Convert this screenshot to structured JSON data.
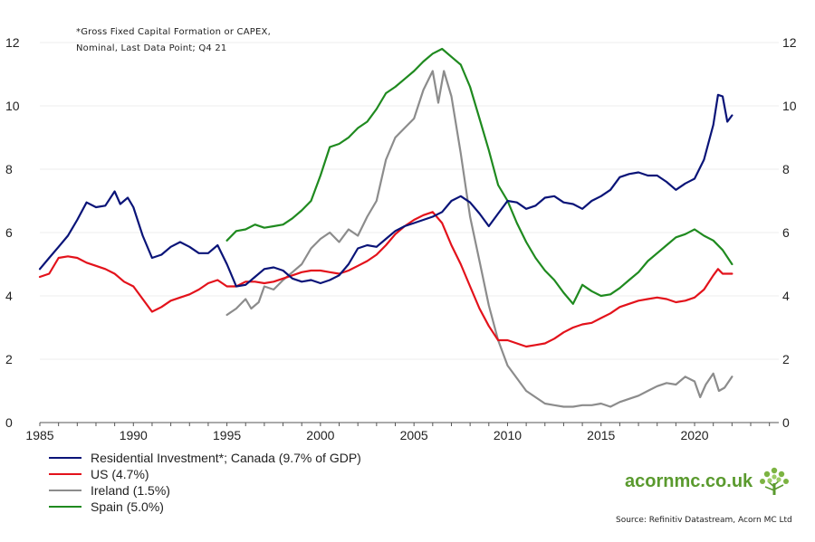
{
  "note": {
    "line1": "*Gross Fixed Capital Formation or CAPEX,",
    "line2": "Nominal, Last Data Point; Q4 21"
  },
  "legend": [
    {
      "label": "Residential Investment*; Canada (9.7% of GDP)",
      "color": "#0a1478"
    },
    {
      "label": "US (4.7%)",
      "color": "#e3121b"
    },
    {
      "label": "Ireland (1.5%)",
      "color": "#8c8c8c"
    },
    {
      "label": "Spain (5.0%)",
      "color": "#1f8a1f"
    }
  ],
  "brand": {
    "text": "acornmc.co.uk",
    "logo_icon": "tree-icon",
    "color": "#5a9a2e"
  },
  "source": "Source: Refinitiv Datastream, Acorn MC Ltd",
  "chart_data": {
    "type": "line",
    "title": "",
    "xlabel": "",
    "ylabel": "",
    "xlim": [
      1985,
      2024.5
    ],
    "ylim": [
      0,
      12
    ],
    "x_ticks": [
      1985,
      1990,
      1995,
      2000,
      2005,
      2010,
      2015,
      2020
    ],
    "y_ticks_left": [
      0,
      2,
      4,
      6,
      8,
      10,
      12
    ],
    "y_ticks_right": [
      0,
      2,
      4,
      6,
      8,
      10,
      12
    ],
    "grid": "horizontal",
    "series": [
      {
        "name": "Residential Investment*; Canada (9.7% of GDP)",
        "color": "#0a1478",
        "points": [
          [
            1985,
            4.85
          ],
          [
            1985.5,
            5.2
          ],
          [
            1986,
            5.55
          ],
          [
            1986.5,
            5.9
          ],
          [
            1987,
            6.4
          ],
          [
            1987.5,
            6.95
          ],
          [
            1988,
            6.8
          ],
          [
            1988.5,
            6.85
          ],
          [
            1989,
            7.3
          ],
          [
            1989.3,
            6.9
          ],
          [
            1989.7,
            7.1
          ],
          [
            1990,
            6.8
          ],
          [
            1990.5,
            5.9
          ],
          [
            1991,
            5.2
          ],
          [
            1991.5,
            5.3
          ],
          [
            1992,
            5.55
          ],
          [
            1992.5,
            5.7
          ],
          [
            1993,
            5.55
          ],
          [
            1993.5,
            5.35
          ],
          [
            1994,
            5.35
          ],
          [
            1994.5,
            5.6
          ],
          [
            1995,
            5.0
          ],
          [
            1995.5,
            4.3
          ],
          [
            1996,
            4.35
          ],
          [
            1996.5,
            4.6
          ],
          [
            1997,
            4.85
          ],
          [
            1997.5,
            4.9
          ],
          [
            1998,
            4.8
          ],
          [
            1998.5,
            4.55
          ],
          [
            1999,
            4.45
          ],
          [
            1999.5,
            4.5
          ],
          [
            2000,
            4.4
          ],
          [
            2000.5,
            4.5
          ],
          [
            2001,
            4.65
          ],
          [
            2001.5,
            5.0
          ],
          [
            2002,
            5.5
          ],
          [
            2002.5,
            5.6
          ],
          [
            2003,
            5.55
          ],
          [
            2003.5,
            5.8
          ],
          [
            2004,
            6.05
          ],
          [
            2004.5,
            6.2
          ],
          [
            2005,
            6.3
          ],
          [
            2005.5,
            6.4
          ],
          [
            2006,
            6.5
          ],
          [
            2006.5,
            6.65
          ],
          [
            2007,
            7.0
          ],
          [
            2007.5,
            7.15
          ],
          [
            2008,
            6.95
          ],
          [
            2008.5,
            6.6
          ],
          [
            2009,
            6.2
          ],
          [
            2009.5,
            6.6
          ],
          [
            2010,
            7.0
          ],
          [
            2010.5,
            6.95
          ],
          [
            2011,
            6.75
          ],
          [
            2011.5,
            6.85
          ],
          [
            2012,
            7.1
          ],
          [
            2012.5,
            7.15
          ],
          [
            2013,
            6.95
          ],
          [
            2013.5,
            6.9
          ],
          [
            2014,
            6.75
          ],
          [
            2014.5,
            7.0
          ],
          [
            2015,
            7.15
          ],
          [
            2015.5,
            7.35
          ],
          [
            2016,
            7.75
          ],
          [
            2016.5,
            7.85
          ],
          [
            2017,
            7.9
          ],
          [
            2017.5,
            7.8
          ],
          [
            2018,
            7.8
          ],
          [
            2018.5,
            7.6
          ],
          [
            2019,
            7.35
          ],
          [
            2019.5,
            7.55
          ],
          [
            2020,
            7.7
          ],
          [
            2020.5,
            8.3
          ],
          [
            2021,
            9.4
          ],
          [
            2021.25,
            10.35
          ],
          [
            2021.5,
            10.3
          ],
          [
            2021.75,
            9.5
          ],
          [
            2022,
            9.7
          ]
        ]
      },
      {
        "name": "US (4.7%)",
        "color": "#e3121b",
        "points": [
          [
            1985,
            4.6
          ],
          [
            1985.5,
            4.7
          ],
          [
            1986,
            5.2
          ],
          [
            1986.5,
            5.25
          ],
          [
            1987,
            5.2
          ],
          [
            1987.5,
            5.05
          ],
          [
            1988,
            4.95
          ],
          [
            1988.5,
            4.85
          ],
          [
            1989,
            4.7
          ],
          [
            1989.5,
            4.45
          ],
          [
            1990,
            4.3
          ],
          [
            1990.5,
            3.9
          ],
          [
            1991,
            3.5
          ],
          [
            1991.5,
            3.65
          ],
          [
            1992,
            3.85
          ],
          [
            1992.5,
            3.95
          ],
          [
            1993,
            4.05
          ],
          [
            1993.5,
            4.2
          ],
          [
            1994,
            4.4
          ],
          [
            1994.5,
            4.5
          ],
          [
            1995,
            4.3
          ],
          [
            1995.5,
            4.3
          ],
          [
            1996,
            4.45
          ],
          [
            1996.5,
            4.45
          ],
          [
            1997,
            4.4
          ],
          [
            1997.5,
            4.45
          ],
          [
            1998,
            4.55
          ],
          [
            1998.5,
            4.65
          ],
          [
            1999,
            4.75
          ],
          [
            1999.5,
            4.8
          ],
          [
            2000,
            4.8
          ],
          [
            2000.5,
            4.75
          ],
          [
            2001,
            4.7
          ],
          [
            2001.5,
            4.8
          ],
          [
            2002,
            4.95
          ],
          [
            2002.5,
            5.1
          ],
          [
            2003,
            5.3
          ],
          [
            2003.5,
            5.6
          ],
          [
            2004,
            5.95
          ],
          [
            2004.5,
            6.2
          ],
          [
            2005,
            6.4
          ],
          [
            2005.5,
            6.55
          ],
          [
            2006,
            6.65
          ],
          [
            2006.5,
            6.3
          ],
          [
            2007,
            5.6
          ],
          [
            2007.5,
            5.0
          ],
          [
            2008,
            4.3
          ],
          [
            2008.5,
            3.6
          ],
          [
            2009,
            3.05
          ],
          [
            2009.5,
            2.6
          ],
          [
            2010,
            2.6
          ],
          [
            2010.5,
            2.5
          ],
          [
            2011,
            2.4
          ],
          [
            2011.5,
            2.45
          ],
          [
            2012,
            2.5
          ],
          [
            2012.5,
            2.65
          ],
          [
            2013,
            2.85
          ],
          [
            2013.5,
            3.0
          ],
          [
            2014,
            3.1
          ],
          [
            2014.5,
            3.15
          ],
          [
            2015,
            3.3
          ],
          [
            2015.5,
            3.45
          ],
          [
            2016,
            3.65
          ],
          [
            2016.5,
            3.75
          ],
          [
            2017,
            3.85
          ],
          [
            2017.5,
            3.9
          ],
          [
            2018,
            3.95
          ],
          [
            2018.5,
            3.9
          ],
          [
            2019,
            3.8
          ],
          [
            2019.5,
            3.85
          ],
          [
            2020,
            3.95
          ],
          [
            2020.5,
            4.2
          ],
          [
            2021,
            4.65
          ],
          [
            2021.25,
            4.85
          ],
          [
            2021.5,
            4.7
          ],
          [
            2022,
            4.7
          ]
        ]
      },
      {
        "name": "Ireland (1.5%)",
        "color": "#8c8c8c",
        "points": [
          [
            1995,
            3.4
          ],
          [
            1995.5,
            3.6
          ],
          [
            1996,
            3.9
          ],
          [
            1996.3,
            3.6
          ],
          [
            1996.7,
            3.8
          ],
          [
            1997,
            4.3
          ],
          [
            1997.5,
            4.2
          ],
          [
            1998,
            4.5
          ],
          [
            1998.5,
            4.75
          ],
          [
            1999,
            5.0
          ],
          [
            1999.5,
            5.5
          ],
          [
            2000,
            5.8
          ],
          [
            2000.5,
            6.0
          ],
          [
            2001,
            5.7
          ],
          [
            2001.5,
            6.1
          ],
          [
            2002,
            5.9
          ],
          [
            2002.5,
            6.5
          ],
          [
            2003,
            7.0
          ],
          [
            2003.5,
            8.3
          ],
          [
            2004,
            9.0
          ],
          [
            2004.5,
            9.3
          ],
          [
            2005,
            9.6
          ],
          [
            2005.5,
            10.5
          ],
          [
            2006,
            11.1
          ],
          [
            2006.3,
            10.1
          ],
          [
            2006.6,
            11.1
          ],
          [
            2007,
            10.3
          ],
          [
            2007.5,
            8.5
          ],
          [
            2008,
            6.5
          ],
          [
            2008.5,
            5.1
          ],
          [
            2009,
            3.7
          ],
          [
            2009.5,
            2.6
          ],
          [
            2010,
            1.8
          ],
          [
            2010.5,
            1.4
          ],
          [
            2011,
            1.0
          ],
          [
            2011.5,
            0.8
          ],
          [
            2012,
            0.6
          ],
          [
            2012.5,
            0.55
          ],
          [
            2013,
            0.5
          ],
          [
            2013.5,
            0.5
          ],
          [
            2014,
            0.55
          ],
          [
            2014.5,
            0.55
          ],
          [
            2015,
            0.6
          ],
          [
            2015.5,
            0.5
          ],
          [
            2016,
            0.65
          ],
          [
            2016.5,
            0.75
          ],
          [
            2017,
            0.85
          ],
          [
            2017.5,
            1.0
          ],
          [
            2018,
            1.15
          ],
          [
            2018.5,
            1.25
          ],
          [
            2019,
            1.2
          ],
          [
            2019.5,
            1.45
          ],
          [
            2020,
            1.3
          ],
          [
            2020.3,
            0.8
          ],
          [
            2020.6,
            1.2
          ],
          [
            2021,
            1.55
          ],
          [
            2021.3,
            1.0
          ],
          [
            2021.6,
            1.1
          ],
          [
            2022,
            1.45
          ]
        ]
      },
      {
        "name": "Spain (5.0%)",
        "color": "#1f8a1f",
        "points": [
          [
            1995,
            5.75
          ],
          [
            1995.5,
            6.05
          ],
          [
            1996,
            6.1
          ],
          [
            1996.5,
            6.25
          ],
          [
            1997,
            6.15
          ],
          [
            1997.5,
            6.2
          ],
          [
            1998,
            6.25
          ],
          [
            1998.5,
            6.45
          ],
          [
            1999,
            6.7
          ],
          [
            1999.5,
            7.0
          ],
          [
            2000,
            7.8
          ],
          [
            2000.5,
            8.7
          ],
          [
            2001,
            8.8
          ],
          [
            2001.5,
            9.0
          ],
          [
            2002,
            9.3
          ],
          [
            2002.5,
            9.5
          ],
          [
            2003,
            9.9
          ],
          [
            2003.5,
            10.4
          ],
          [
            2004,
            10.6
          ],
          [
            2004.5,
            10.85
          ],
          [
            2005,
            11.1
          ],
          [
            2005.5,
            11.4
          ],
          [
            2006,
            11.65
          ],
          [
            2006.5,
            11.8
          ],
          [
            2007,
            11.55
          ],
          [
            2007.5,
            11.3
          ],
          [
            2008,
            10.6
          ],
          [
            2008.5,
            9.6
          ],
          [
            2009,
            8.6
          ],
          [
            2009.5,
            7.5
          ],
          [
            2010,
            7.0
          ],
          [
            2010.5,
            6.3
          ],
          [
            2011,
            5.7
          ],
          [
            2011.5,
            5.2
          ],
          [
            2012,
            4.8
          ],
          [
            2012.5,
            4.5
          ],
          [
            2013,
            4.1
          ],
          [
            2013.5,
            3.75
          ],
          [
            2014,
            4.35
          ],
          [
            2014.5,
            4.15
          ],
          [
            2015,
            4.0
          ],
          [
            2015.5,
            4.05
          ],
          [
            2016,
            4.25
          ],
          [
            2016.5,
            4.5
          ],
          [
            2017,
            4.75
          ],
          [
            2017.5,
            5.1
          ],
          [
            2018,
            5.35
          ],
          [
            2018.5,
            5.6
          ],
          [
            2019,
            5.85
          ],
          [
            2019.5,
            5.95
          ],
          [
            2020,
            6.1
          ],
          [
            2020.5,
            5.9
          ],
          [
            2021,
            5.75
          ],
          [
            2021.5,
            5.45
          ],
          [
            2022,
            5.0
          ]
        ]
      }
    ]
  }
}
